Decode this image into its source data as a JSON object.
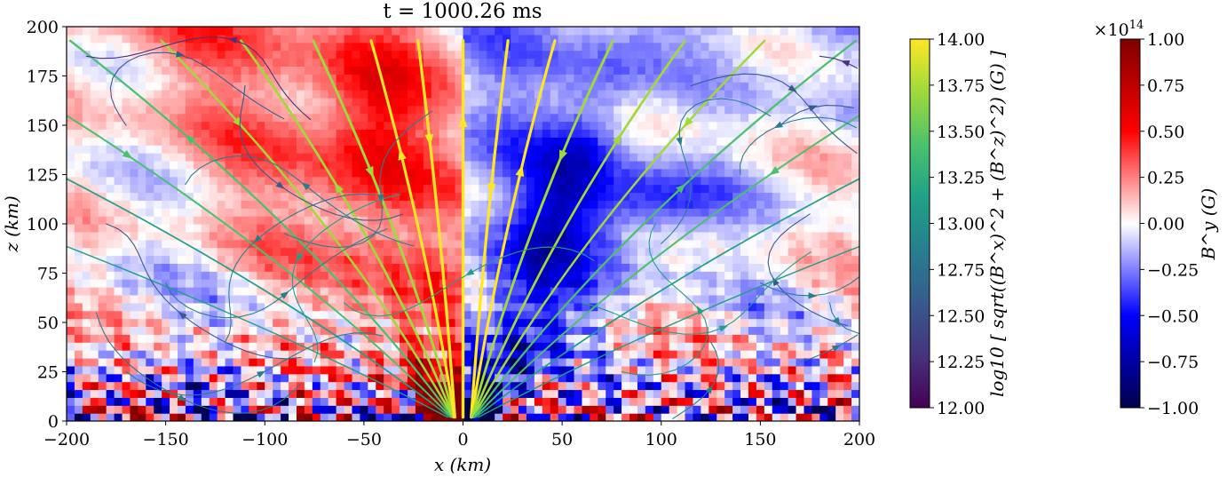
{
  "chart_data": {
    "type": "heatmap",
    "title": "t = 1000.26 ms",
    "xlabel": "x (km)",
    "ylabel": "z (km)",
    "xlim": [
      -200,
      200
    ],
    "ylim": [
      0,
      200
    ],
    "xticks": [
      "−200",
      "−150",
      "−100",
      "−50",
      "0",
      "50",
      "100",
      "150",
      "200"
    ],
    "xtick_values": [
      -200,
      -150,
      -100,
      -50,
      0,
      50,
      100,
      150,
      200
    ],
    "yticks": [
      "0",
      "25",
      "50",
      "75",
      "100",
      "125",
      "150",
      "175",
      "200"
    ],
    "ytick_values": [
      0,
      25,
      50,
      75,
      100,
      125,
      150,
      175,
      200
    ],
    "field": "B^y toroidal field, red = positive, blue = negative; poloidal streamlines overlaid",
    "colorbars": [
      {
        "label": "log10 [ sqrt((B^x)^2 + (B^z)^2) (G) ]",
        "colormap": "viridis",
        "range": [
          12.0,
          14.0
        ],
        "ticks": [
          "12.00",
          "12.25",
          "12.50",
          "12.75",
          "13.00",
          "13.25",
          "13.50",
          "13.75",
          "14.00"
        ],
        "tick_values": [
          12.0,
          12.25,
          12.5,
          12.75,
          13.0,
          13.25,
          13.5,
          13.75,
          14.0
        ],
        "colors": [
          "#440154",
          "#46327e",
          "#365c8d",
          "#277f8e",
          "#1fa187",
          "#4ac16d",
          "#a0da39",
          "#fde725"
        ]
      },
      {
        "label": "B^y (G)",
        "colormap": "seismic",
        "range": [
          -1.0,
          1.0
        ],
        "multiplier": "×10^14",
        "multiplier_base": "×10",
        "multiplier_exp": "14",
        "ticks": [
          "−1.00",
          "−0.75",
          "−0.50",
          "−0.25",
          "0.00",
          "0.25",
          "0.50",
          "0.75",
          "1.00"
        ],
        "tick_values": [
          -1.0,
          -0.75,
          -0.5,
          -0.25,
          0.0,
          0.25,
          0.5,
          0.75,
          1.0
        ],
        "colors": [
          "#00004c",
          "#0000ff",
          "#ffffff",
          "#ff0000",
          "#800000"
        ]
      }
    ]
  }
}
